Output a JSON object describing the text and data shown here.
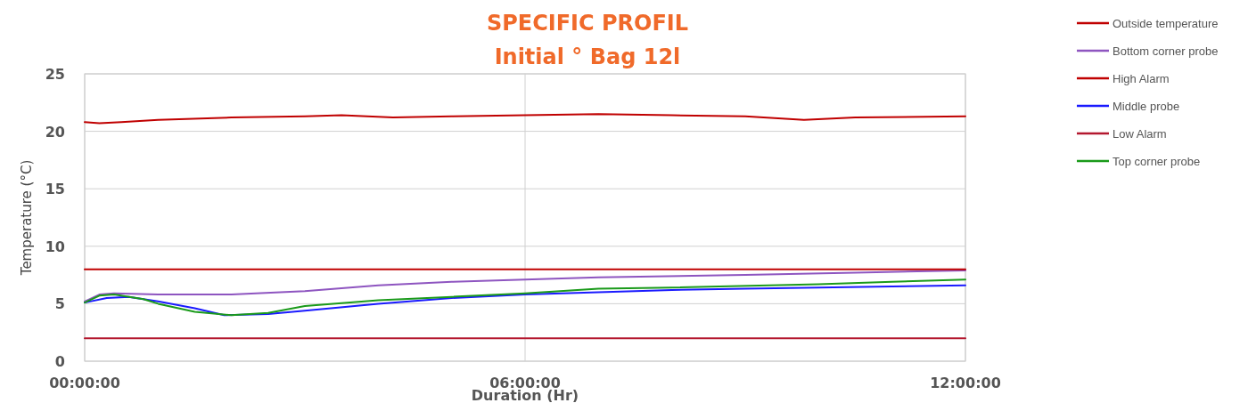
{
  "chart_data": {
    "type": "line",
    "title": "SPECIFIC PROFIL",
    "subtitle": "Initial ° Bag 12l",
    "xlabel": "Duration (Hr)",
    "ylabel": "Temperature (°C)",
    "xlim": [
      0,
      12
    ],
    "xticks": [
      {
        "value": 0,
        "label": "00:00:00"
      },
      {
        "value": 6,
        "label": "06:00:00"
      },
      {
        "value": 12,
        "label": "12:00:00"
      }
    ],
    "ylim": [
      0,
      25
    ],
    "yticks": [
      0,
      5,
      10,
      15,
      20,
      25
    ],
    "grid": true,
    "legend": "top right",
    "marker": "none",
    "line_style": "solid",
    "series": [
      {
        "name": "Outside temperature",
        "color": "#c00000",
        "x": [
          0,
          0.2,
          0.5,
          1,
          2,
          3,
          3.5,
          4.2,
          5,
          6,
          7,
          8,
          9,
          9.8,
          10.5,
          12
        ],
        "values": [
          20.8,
          20.7,
          20.8,
          21.0,
          21.2,
          21.3,
          21.4,
          21.2,
          21.3,
          21.4,
          21.5,
          21.4,
          21.3,
          21.0,
          21.2,
          21.3
        ]
      },
      {
        "name": "Bottom corner probe",
        "color": "#8e55c0",
        "x": [
          0,
          0.2,
          0.4,
          1,
          2,
          3,
          4,
          5,
          6,
          7,
          9,
          10.5,
          12
        ],
        "values": [
          5.2,
          5.8,
          5.9,
          5.8,
          5.8,
          6.1,
          6.6,
          6.9,
          7.1,
          7.3,
          7.5,
          7.7,
          7.9
        ]
      },
      {
        "name": "High Alarm",
        "color": "#c00000",
        "x": [
          0,
          12
        ],
        "values": [
          8,
          8
        ]
      },
      {
        "name": "Middle probe",
        "color": "#1a1aff",
        "x": [
          0,
          0.3,
          0.6,
          1,
          1.5,
          1.9,
          2.5,
          3,
          4,
          5,
          6,
          7,
          8,
          9,
          10,
          11,
          12
        ],
        "values": [
          5.1,
          5.5,
          5.6,
          5.2,
          4.6,
          4.0,
          4.1,
          4.4,
          5.0,
          5.5,
          5.8,
          6.0,
          6.2,
          6.3,
          6.4,
          6.5,
          6.6
        ]
      },
      {
        "name": "Low Alarm",
        "color": "#b4182f",
        "x": [
          0,
          12
        ],
        "values": [
          2,
          2
        ]
      },
      {
        "name": "Top corner probe",
        "color": "#1a9a1a",
        "x": [
          0,
          0.2,
          0.4,
          0.8,
          1,
          1.5,
          2,
          2.5,
          3,
          4,
          5,
          6,
          7,
          8,
          10,
          11,
          12
        ],
        "values": [
          5.1,
          5.7,
          5.8,
          5.4,
          5.0,
          4.3,
          4.0,
          4.2,
          4.8,
          5.3,
          5.6,
          5.9,
          6.3,
          6.4,
          6.7,
          6.9,
          7.1
        ]
      }
    ]
  }
}
